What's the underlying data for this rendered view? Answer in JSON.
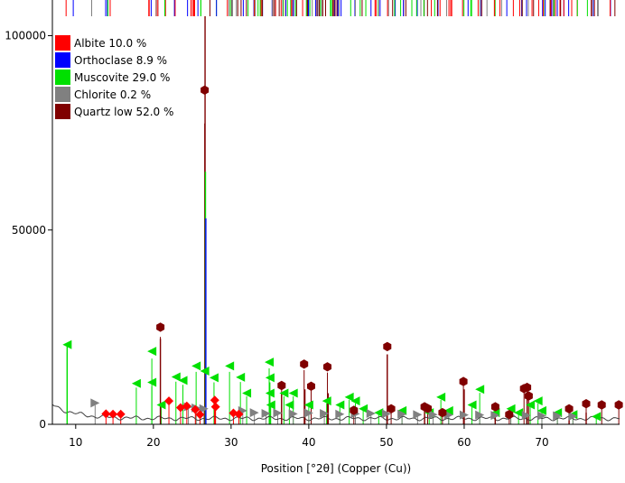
{
  "chart_data": {
    "type": "line",
    "xlabel": "Position [°2θ] (Copper (Cu))",
    "ylabel": "",
    "xlim": [
      7,
      80
    ],
    "ylim": [
      0,
      105000
    ],
    "x_ticks": [
      10,
      20,
      30,
      40,
      50,
      60,
      70
    ],
    "y_ticks": [
      0,
      50000,
      100000
    ],
    "grid": false,
    "legend_position": "top-left",
    "legend": [
      {
        "name": "Albite 10.0 %",
        "color": "#ff0000"
      },
      {
        "name": "Orthoclase 8.9 %",
        "color": "#0000ff"
      },
      {
        "name": "Muscovite 29.0 %",
        "color": "#00e000"
      },
      {
        "name": "Chlorite 0.2 %",
        "color": "#808080"
      },
      {
        "name": "Quartz low 52.0 %",
        "color": "#800000"
      }
    ],
    "main_peaks": [
      {
        "x": 8.9,
        "y": 20000,
        "color": "#00e000"
      },
      {
        "x": 20.9,
        "y": 22000,
        "color": "#800000"
      },
      {
        "x": 26.65,
        "y": 105000,
        "color": "#800000"
      },
      {
        "x": 26.7,
        "y": 65000,
        "color": "#00e000"
      },
      {
        "x": 26.75,
        "y": 53000,
        "color": "#0000ff"
      },
      {
        "x": 27.9,
        "y": 5000,
        "color": "#ff0000"
      },
      {
        "x": 36.5,
        "y": 8000,
        "color": "#800000"
      },
      {
        "x": 39.5,
        "y": 9000,
        "color": "#800000"
      },
      {
        "x": 42.5,
        "y": 8000,
        "color": "#800000"
      },
      {
        "x": 50.1,
        "y": 18000,
        "color": "#800000"
      },
      {
        "x": 54.9,
        "y": 4000,
        "color": "#800000"
      },
      {
        "x": 60.0,
        "y": 9000,
        "color": "#800000"
      },
      {
        "x": 64.0,
        "y": 3000,
        "color": "#800000"
      },
      {
        "x": 68.1,
        "y": 7000,
        "color": "#800000"
      },
      {
        "x": 73.5,
        "y": 2500,
        "color": "#800000"
      },
      {
        "x": 75.7,
        "y": 3000,
        "color": "#800000"
      }
    ],
    "reference_markers": [
      {
        "phase": "Muscovite",
        "shape": "triangle-left",
        "color": "#00e000",
        "points": [
          [
            8.9,
            20500
          ],
          [
            17.8,
            10500
          ],
          [
            19.8,
            18800
          ],
          [
            19.8,
            10800
          ],
          [
            21.0,
            5000
          ],
          [
            22.9,
            12200
          ],
          [
            23.8,
            11300
          ],
          [
            25.5,
            15000
          ],
          [
            26.6,
            13700
          ],
          [
            27.8,
            12000
          ],
          [
            29.8,
            15000
          ],
          [
            31.2,
            12100
          ],
          [
            32.0,
            8000
          ],
          [
            34.9,
            16000
          ],
          [
            35.0,
            12000
          ],
          [
            35.0,
            8000
          ],
          [
            35.1,
            5000
          ],
          [
            36.8,
            8000
          ],
          [
            37.5,
            5000
          ],
          [
            38.0,
            8000
          ],
          [
            40.0,
            5000
          ],
          [
            42.3,
            6000
          ],
          [
            44.0,
            5000
          ],
          [
            45.2,
            7000
          ],
          [
            46.0,
            6000
          ],
          [
            47.0,
            4000
          ],
          [
            49.0,
            3000
          ],
          [
            52.0,
            3500
          ],
          [
            55.5,
            3000
          ],
          [
            57.0,
            7000
          ],
          [
            58.0,
            3500
          ],
          [
            61.0,
            5000
          ],
          [
            62.0,
            9000
          ],
          [
            64.0,
            3000
          ],
          [
            66.0,
            4000
          ],
          [
            67.0,
            3000
          ],
          [
            68.5,
            5000
          ],
          [
            69.5,
            6000
          ],
          [
            70.0,
            3500
          ],
          [
            72.0,
            3000
          ],
          [
            74.0,
            2500
          ],
          [
            77.0,
            2000
          ]
        ]
      },
      {
        "phase": "Chlorite",
        "shape": "triangle-right",
        "color": "#808080",
        "points": [
          [
            12.5,
            5500
          ],
          [
            24.5,
            4500
          ],
          [
            25.5,
            4200
          ],
          [
            26.5,
            4000
          ],
          [
            31.5,
            3500
          ],
          [
            33.0,
            3000
          ],
          [
            34.5,
            2800
          ],
          [
            36.0,
            2900
          ],
          [
            38.0,
            2700
          ],
          [
            40.0,
            2900
          ],
          [
            42.0,
            2800
          ],
          [
            44.0,
            2600
          ],
          [
            46.0,
            2700
          ],
          [
            48.0,
            2800
          ],
          [
            50.0,
            2700
          ],
          [
            52.0,
            2600
          ],
          [
            54.0,
            2500
          ],
          [
            56.0,
            2500
          ],
          [
            58.0,
            2400
          ],
          [
            60.0,
            2400
          ],
          [
            62.0,
            2400
          ],
          [
            64.0,
            2300
          ],
          [
            66.0,
            2300
          ],
          [
            68.0,
            2300
          ],
          [
            70.0,
            2200
          ],
          [
            72.0,
            2200
          ],
          [
            74.0,
            2100
          ]
        ]
      },
      {
        "phase": "Albite",
        "shape": "diamond",
        "color": "#ff0000",
        "points": [
          [
            13.9,
            2700
          ],
          [
            14.8,
            2600
          ],
          [
            15.8,
            2600
          ],
          [
            22.0,
            6000
          ],
          [
            23.5,
            4300
          ],
          [
            24.3,
            4700
          ],
          [
            25.4,
            3800
          ],
          [
            26.0,
            2500
          ],
          [
            27.9,
            6200
          ],
          [
            28.0,
            4500
          ],
          [
            30.3,
            2900
          ],
          [
            31.0,
            2600
          ]
        ]
      },
      {
        "phase": "Quartz low",
        "shape": "hexagon",
        "color": "#800000",
        "points": [
          [
            20.9,
            25000
          ],
          [
            26.6,
            86000
          ],
          [
            36.5,
            10000
          ],
          [
            39.4,
            15500
          ],
          [
            40.3,
            9800
          ],
          [
            42.4,
            14800
          ],
          [
            45.8,
            3600
          ],
          [
            50.1,
            20000
          ],
          [
            50.6,
            4000
          ],
          [
            54.9,
            4500
          ],
          [
            55.3,
            4100
          ],
          [
            57.2,
            3000
          ],
          [
            59.9,
            11000
          ],
          [
            64.0,
            4500
          ],
          [
            65.8,
            2500
          ],
          [
            67.7,
            9200
          ],
          [
            68.1,
            9500
          ],
          [
            68.3,
            7300
          ],
          [
            73.5,
            4000
          ],
          [
            75.7,
            5300
          ],
          [
            77.7,
            5000
          ],
          [
            79.9,
            5000
          ]
        ]
      }
    ]
  }
}
